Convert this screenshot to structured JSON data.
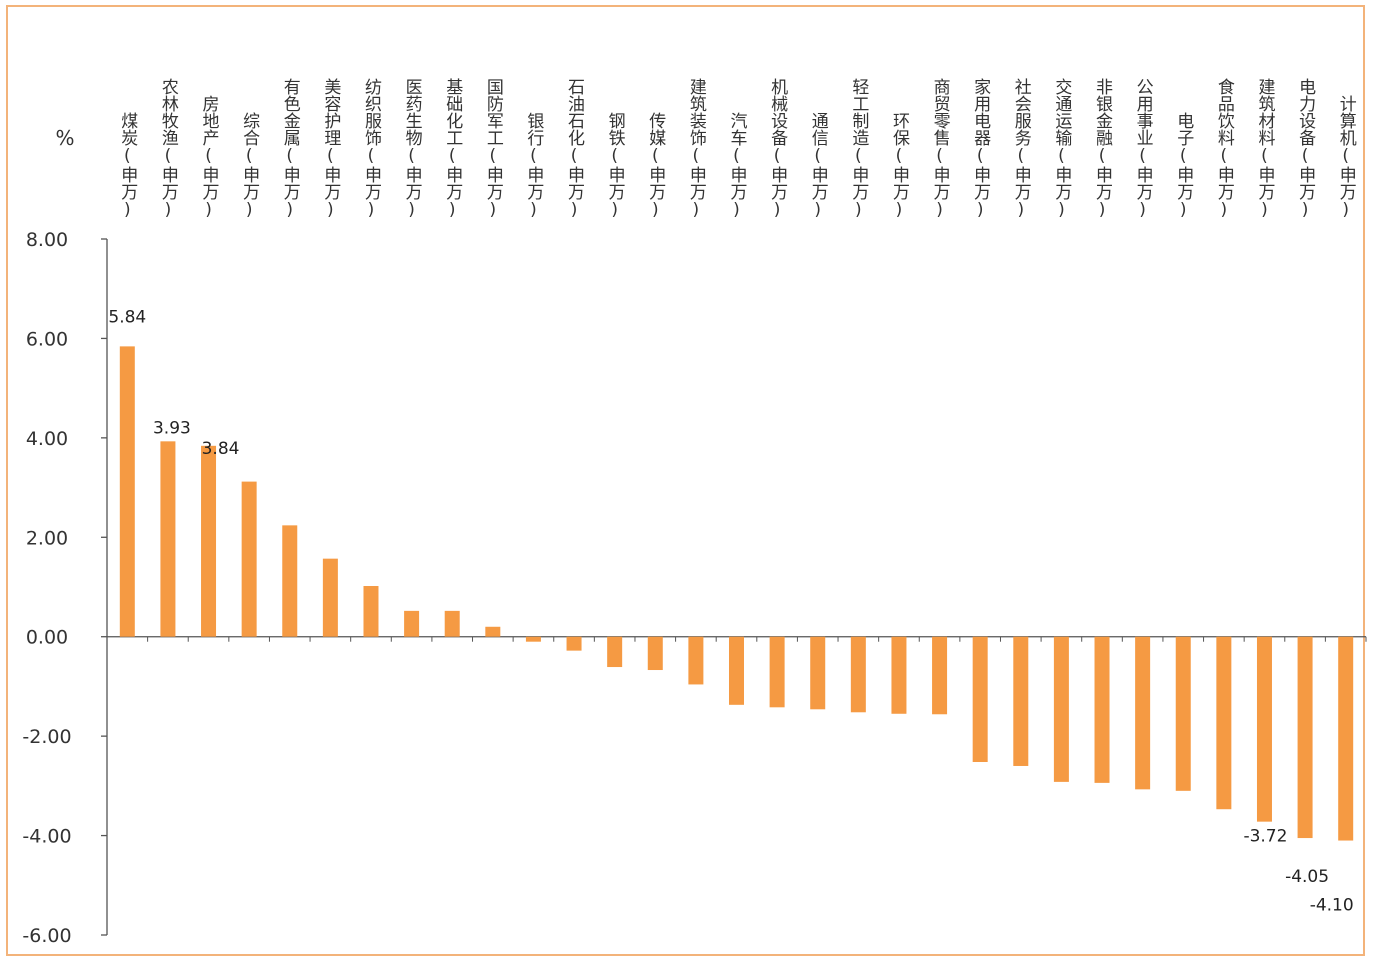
{
  "chart_data": {
    "type": "bar",
    "ylabel": "%",
    "ylim": [
      -6,
      8
    ],
    "yticks": [
      8,
      6,
      4,
      2,
      0,
      -2,
      -4,
      -6
    ],
    "ytick_labels": [
      "8.00",
      "6.00",
      "4.00",
      "2.00",
      "0.00",
      "-2.00",
      "-4.00",
      "-6.00"
    ],
    "bar_color": "#f59a43",
    "frame_color": "#f3b37a",
    "categories": [
      "煤炭(申万)",
      "农林牧渔(申万)",
      "房地产(申万)",
      "综合(申万)",
      "有色金属(申万)",
      "美容护理(申万)",
      "纺织服饰(申万)",
      "医药生物(申万)",
      "基础化工(申万)",
      "国防军工(申万)",
      "银行(申万)",
      "石油石化(申万)",
      "钢铁(申万)",
      "传媒(申万)",
      "建筑装饰(申万)",
      "汽车(申万)",
      "机械设备(申万)",
      "通信(申万)",
      "轻工制造(申万)",
      "环保(申万)",
      "商贸零售(申万)",
      "家用电器(申万)",
      "社会服务(申万)",
      "交通运输(申万)",
      "非银金融(申万)",
      "公用事业(申万)",
      "电子(申万)",
      "食品饮料(申万)",
      "建筑材料(申万)",
      "电力设备(申万)",
      "计算机(申万)"
    ],
    "values": [
      5.84,
      3.93,
      3.84,
      3.12,
      2.24,
      1.57,
      1.02,
      0.52,
      0.52,
      0.2,
      -0.1,
      -0.28,
      -0.61,
      -0.67,
      -0.96,
      -1.37,
      -1.42,
      -1.46,
      -1.52,
      -1.55,
      -1.56,
      -2.52,
      -2.6,
      -2.92,
      -2.94,
      -3.07,
      -3.1,
      -3.47,
      -3.72,
      -4.05,
      -4.1
    ],
    "data_labels": [
      {
        "index": 0,
        "text": "5.84"
      },
      {
        "index": 1,
        "text": "3.93"
      },
      {
        "index": 2,
        "text": "3.84"
      },
      {
        "index": 28,
        "text": "-3.72"
      },
      {
        "index": 29,
        "text": "-4.05"
      },
      {
        "index": 30,
        "text": "-4.10"
      }
    ]
  }
}
